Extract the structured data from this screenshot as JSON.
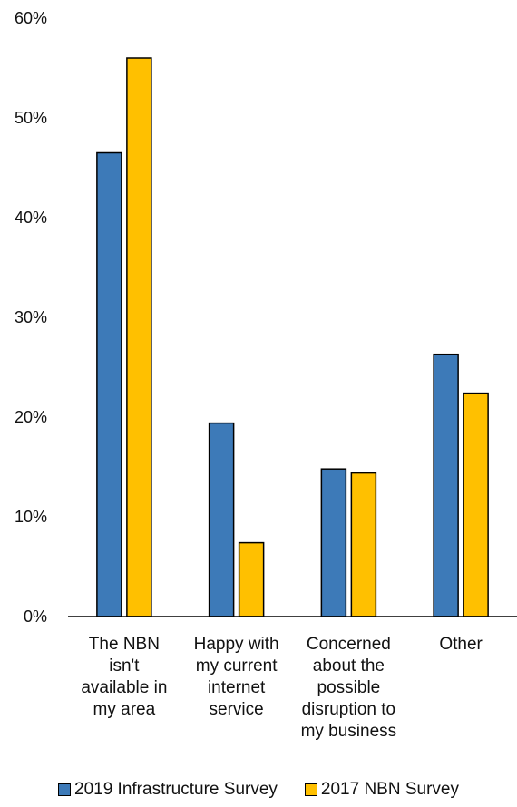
{
  "chart_data": {
    "type": "bar",
    "categories": [
      [
        "The NBN",
        "isn't",
        "available in",
        "my area"
      ],
      [
        "Happy with",
        "my current",
        "internet",
        "service"
      ],
      [
        "Concerned",
        "about the",
        "possible",
        "disruption to",
        "my business"
      ],
      [
        "Other"
      ]
    ],
    "series": [
      {
        "name": "2019 Infrastructure Survey",
        "values": [
          46.5,
          19.4,
          14.8,
          26.3
        ],
        "color": "#3d7ab8"
      },
      {
        "name": "2017 NBN Survey",
        "values": [
          56.0,
          7.4,
          14.4,
          22.4
        ],
        "color": "#ffc000"
      }
    ],
    "ylim": [
      0,
      60
    ],
    "yticks": [
      "0%",
      "10%",
      "20%",
      "30%",
      "40%",
      "50%",
      "60%"
    ],
    "grid": false,
    "legend_position": "bottom",
    "title": "",
    "xlabel": "",
    "ylabel": ""
  }
}
